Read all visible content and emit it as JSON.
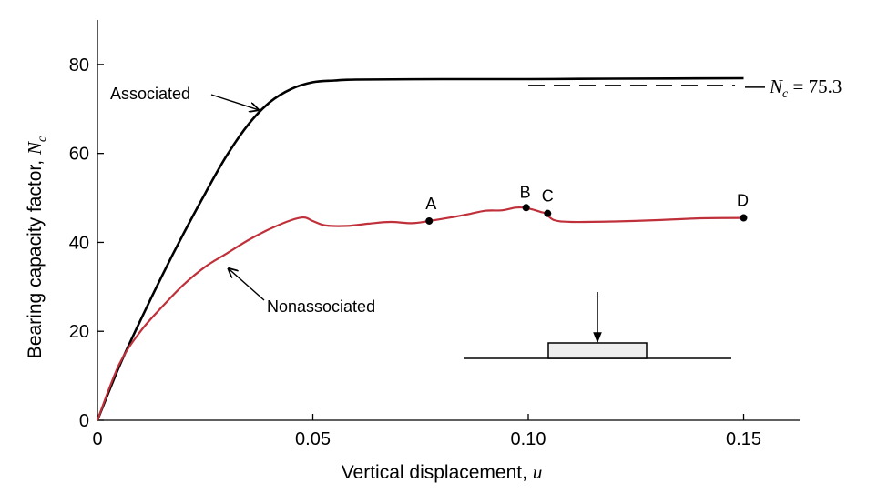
{
  "chart_data": {
    "type": "line",
    "xlabel": "Vertical displacement,",
    "xlabel_var": "u",
    "ylabel": "Bearing capacity factor,",
    "ylabel_var": "N",
    "ylabel_sub": "c",
    "xlim": [
      0,
      0.163
    ],
    "ylim": [
      0,
      90
    ],
    "x_ticks": [
      0,
      0.05,
      0.1,
      0.15
    ],
    "x_tick_labels": [
      "0",
      "0.05",
      "0.10",
      "0.15"
    ],
    "y_ticks": [
      0,
      20,
      40,
      60,
      80
    ],
    "y_tick_labels": [
      "0",
      "20",
      "40",
      "60",
      "80"
    ],
    "series": [
      {
        "name": "Associated",
        "color": "#000000",
        "x": [
          0,
          0.005,
          0.01,
          0.015,
          0.02,
          0.025,
          0.03,
          0.035,
          0.04,
          0.045,
          0.05,
          0.055,
          0.06,
          0.08,
          0.1,
          0.12,
          0.15
        ],
        "y": [
          0,
          12,
          22.5,
          32.5,
          42,
          51,
          59.5,
          66.5,
          71.5,
          74.5,
          76,
          76.4,
          76.6,
          76.7,
          76.7,
          76.8,
          76.9
        ]
      },
      {
        "name": "Nonassociated",
        "color": "#c0303a",
        "x": [
          0,
          0.005,
          0.01,
          0.015,
          0.02,
          0.025,
          0.03,
          0.035,
          0.04,
          0.045,
          0.048,
          0.05,
          0.053,
          0.058,
          0.063,
          0.068,
          0.073,
          0.077,
          0.082,
          0.086,
          0.09,
          0.094,
          0.097,
          0.099,
          0.101,
          0.103,
          0.104,
          0.106,
          0.11,
          0.12,
          0.13,
          0.14,
          0.15
        ],
        "y": [
          0,
          12.5,
          20,
          25.5,
          30.5,
          34.5,
          37.5,
          40.5,
          43,
          45,
          45.6,
          44.8,
          43.8,
          43.7,
          44.2,
          44.6,
          44.3,
          44.8,
          45.6,
          46.3,
          47.1,
          47.2,
          47.8,
          47.8,
          47.4,
          46.8,
          46.5,
          45,
          44.6,
          44.7,
          45,
          45.4,
          45.5
        ]
      }
    ],
    "reference_line": {
      "y": 75.3,
      "x_range": [
        0.1,
        0.148
      ],
      "style": "dashed",
      "label_var": "N",
      "label_sub": "c",
      "label_rest": " = 75.3"
    },
    "points": [
      {
        "label": "A",
        "x": 0.077,
        "y": 44.8
      },
      {
        "label": "B",
        "x": 0.0995,
        "y": 47.8
      },
      {
        "label": "C",
        "x": 0.1045,
        "y": 46.5
      },
      {
        "label": "D",
        "x": 0.15,
        "y": 45.5
      }
    ],
    "annotations": [
      {
        "text": "Associated",
        "points_to": [
          0.038,
          70
        ]
      },
      {
        "text": "Nonassociated",
        "points_to": [
          0.03,
          34.5
        ]
      }
    ],
    "inset": "footing-under-vertical-load"
  }
}
